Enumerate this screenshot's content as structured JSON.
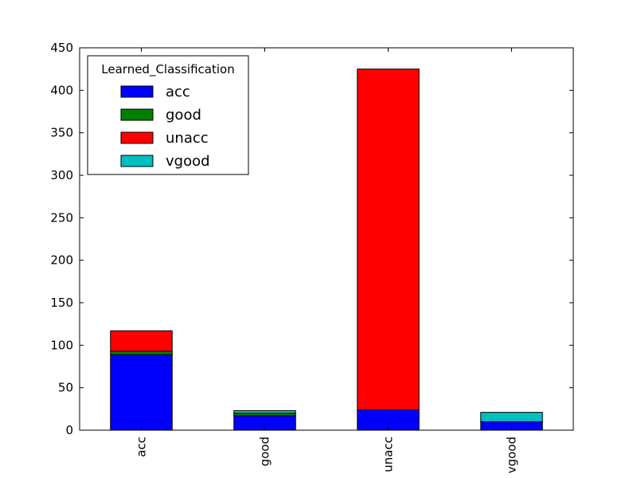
{
  "chart_data": {
    "type": "bar",
    "stacked": true,
    "categories": [
      "acc",
      "good",
      "unacc",
      "vgood"
    ],
    "series": [
      {
        "name": "acc",
        "color": "#0000ff",
        "values": [
          89,
          17,
          24,
          10
        ]
      },
      {
        "name": "good",
        "color": "#008000",
        "values": [
          4,
          3,
          0,
          0
        ]
      },
      {
        "name": "unacc",
        "color": "#ff0000",
        "values": [
          24,
          0,
          401,
          0
        ]
      },
      {
        "name": "vgood",
        "color": "#00bfbf",
        "values": [
          0,
          3,
          0,
          11
        ]
      }
    ],
    "ylim": [
      0,
      450
    ],
    "yticks": [
      "0",
      "50",
      "100",
      "150",
      "200",
      "250",
      "300",
      "350",
      "400",
      "450"
    ],
    "legend": {
      "title": "Learned_Classification",
      "placement": "top-left"
    },
    "grid": false
  }
}
